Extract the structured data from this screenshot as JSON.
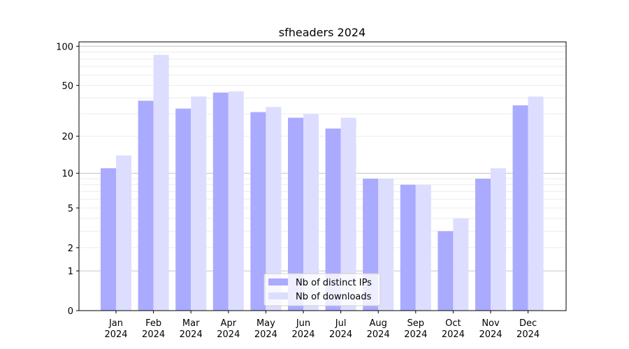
{
  "chart_data": {
    "type": "bar",
    "title": "sfheaders 2024",
    "xlabel": "",
    "ylabel": "",
    "yscale": "log(1+y)",
    "ylim": [
      0,
      108
    ],
    "yticks": [
      0,
      1,
      2,
      5,
      10,
      20,
      50,
      100
    ],
    "ytick_labels": [
      "0",
      "1",
      "2",
      "5",
      "10",
      "20",
      "50",
      "100"
    ],
    "grid": true,
    "categories": [
      "Jan\n2024",
      "Feb\n2024",
      "Mar\n2024",
      "Apr\n2024",
      "May\n2024",
      "Jun\n2024",
      "Jul\n2024",
      "Aug\n2024",
      "Sep\n2024",
      "Oct\n2024",
      "Nov\n2024",
      "Dec\n2024"
    ],
    "series": [
      {
        "name": "Nb of distinct IPs",
        "color": "#aaaaff",
        "values": [
          11,
          38,
          33,
          44,
          31,
          28,
          23,
          9,
          8,
          3,
          9,
          35
        ]
      },
      {
        "name": "Nb of downloads",
        "color": "#ddddff",
        "values": [
          14,
          86,
          41,
          45,
          34,
          30,
          28,
          9,
          8,
          4,
          11,
          41
        ]
      }
    ],
    "legend": "bottom-center"
  }
}
